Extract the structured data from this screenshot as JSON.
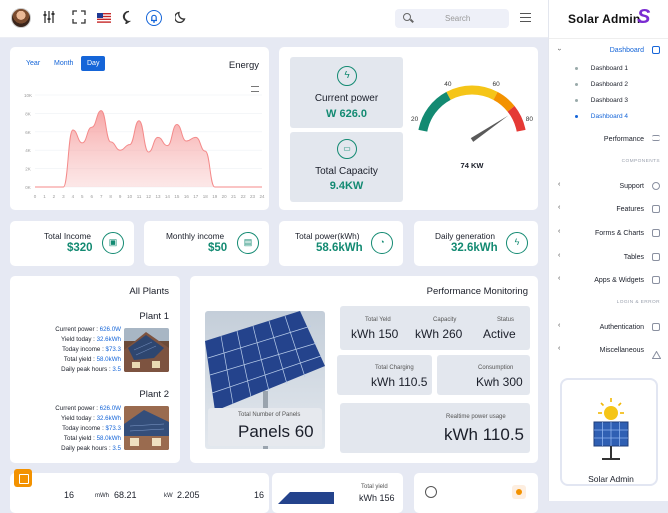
{
  "header": {
    "search_placeholder": "Search"
  },
  "sidebar": {
    "brand": "Solar Admin",
    "brand_mark": "S",
    "dashboard": "Dashboard",
    "sub": [
      "Dashboard 1",
      "Dashboard 2",
      "Dashboard 3",
      "Dashboard 4"
    ],
    "performance": "Performance",
    "components_head": "COMPONENTS",
    "items": [
      "Support",
      "Features",
      "Forms & Charts",
      "Tables",
      "Apps & Widgets"
    ],
    "login_head": "LOGIN & ERROR",
    "items2": [
      "Authentication",
      "Miscellaneous"
    ],
    "card_label": "Solar Admin",
    "accent": "#1565d8"
  },
  "energy": {
    "tabs": [
      "Year",
      "Month",
      "Day"
    ],
    "title": "Energy",
    "chart_data": {
      "type": "area",
      "title": "Energy",
      "x": [
        0,
        1,
        2,
        3,
        4,
        5,
        6,
        7,
        8,
        9,
        10,
        11,
        12,
        13,
        14,
        15,
        16,
        17,
        18,
        19,
        20,
        21,
        22,
        23,
        24
      ],
      "xticks": [
        "0",
        "1",
        "2",
        "3",
        "4",
        "5",
        "6",
        "7",
        "8",
        "9",
        "10",
        "11",
        "12",
        "13",
        "14",
        "15",
        "16",
        "17",
        "18",
        "19",
        "20",
        "21",
        "22",
        "23",
        "24"
      ],
      "yticks": [
        "0K",
        "2K",
        "4K",
        "6K",
        "8K",
        "10K"
      ],
      "ylim": [
        0,
        10000
      ],
      "values": [
        0,
        0,
        0,
        0,
        6200,
        4800,
        6500,
        8300,
        4900,
        4000,
        4600,
        7200,
        3800,
        5400,
        4500,
        6800,
        5000,
        5400,
        3900,
        0,
        0,
        0,
        0,
        0,
        0
      ],
      "color": "#f48a8a"
    }
  },
  "current_power": {
    "title": "Current power",
    "value": "W 626.0"
  },
  "total_capacity": {
    "title": "Total Capacity",
    "value": "9.4KW"
  },
  "gauge": {
    "ticks": [
      "20",
      "40",
      "60",
      "80"
    ],
    "value_label": "74 KW",
    "value": 74,
    "min": 20,
    "max": 80
  },
  "stats": [
    {
      "label": "Total Income",
      "value": "$320"
    },
    {
      "label": "Monthly income",
      "value": "$50"
    },
    {
      "label": "Total power(kWh)",
      "value": "58.6kWh"
    },
    {
      "label": "Daily generation",
      "value": "32.6kWh"
    }
  ],
  "plants": {
    "title": "All Plants",
    "list": [
      {
        "name": "Plant 1",
        "rows": [
          [
            "Current power : ",
            "626.0W"
          ],
          [
            "Yield today : ",
            "32.6kWh"
          ],
          [
            "Today income : ",
            "$73.3"
          ],
          [
            "Total yield : ",
            "58.0kWh"
          ],
          [
            "Daily peak hours : ",
            "3.5"
          ]
        ]
      },
      {
        "name": "Plant 2",
        "rows": [
          [
            "Current power : ",
            "626.0W"
          ],
          [
            "Yield today : ",
            "32.6kWh"
          ],
          [
            "Today income : ",
            "$73.3"
          ],
          [
            "Total yield : ",
            "58.0kWh"
          ],
          [
            "Daily peak hours : ",
            "3.5"
          ]
        ]
      }
    ]
  },
  "perf": {
    "title": "Performance Monitoring",
    "panels_label": "Total Number of Panels",
    "panels_value": "Panels 60",
    "total_yield_lbl": "Total Yeld",
    "total_yield": "kWh 150",
    "capacity_lbl": "Capacity",
    "capacity": "kWh 260",
    "status_lbl": "Status",
    "status": "Active",
    "charging_lbl": "Total Charging",
    "charging": "kWh 110.5",
    "consumption_lbl": "Consumption",
    "consumption": "Kwh 300",
    "realtime_lbl": "Realtime power usage",
    "realtime": "kWh 110.5"
  },
  "bottom": {
    "a": "16",
    "b_unit": "mWh",
    "b": "68.21",
    "c_unit": "kW",
    "c": "2.205",
    "d": "16",
    "yield_lbl": "Total yield",
    "yield": "kWh 156"
  }
}
